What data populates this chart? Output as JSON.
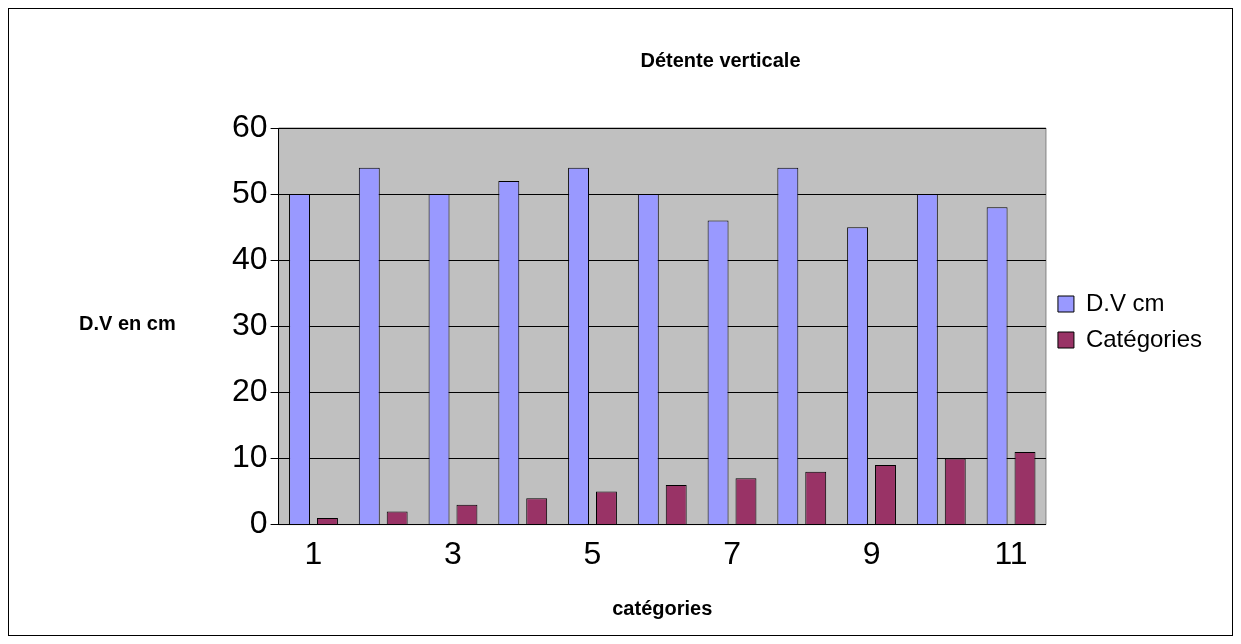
{
  "chart_data": {
    "type": "bar",
    "title": "Détente verticale",
    "xlabel": "catégories",
    "ylabel": "D.V en cm",
    "categories": [
      "1",
      null,
      "3",
      null,
      "5",
      null,
      "7",
      null,
      "9",
      null,
      "11"
    ],
    "series": [
      {
        "name": "D.V cm",
        "color": "#9999ff",
        "values": [
          50,
          54,
          50,
          52,
          54,
          50,
          46,
          54,
          45,
          50,
          48
        ]
      },
      {
        "name": "Catégories",
        "color": "#993366",
        "values": [
          1,
          2,
          3,
          4,
          5,
          6,
          7,
          8,
          9,
          10,
          11
        ]
      }
    ],
    "ylim": [
      0,
      60
    ],
    "yticks": [
      0,
      10,
      20,
      30,
      40,
      50,
      60
    ],
    "grid": "y",
    "legend": "right"
  }
}
